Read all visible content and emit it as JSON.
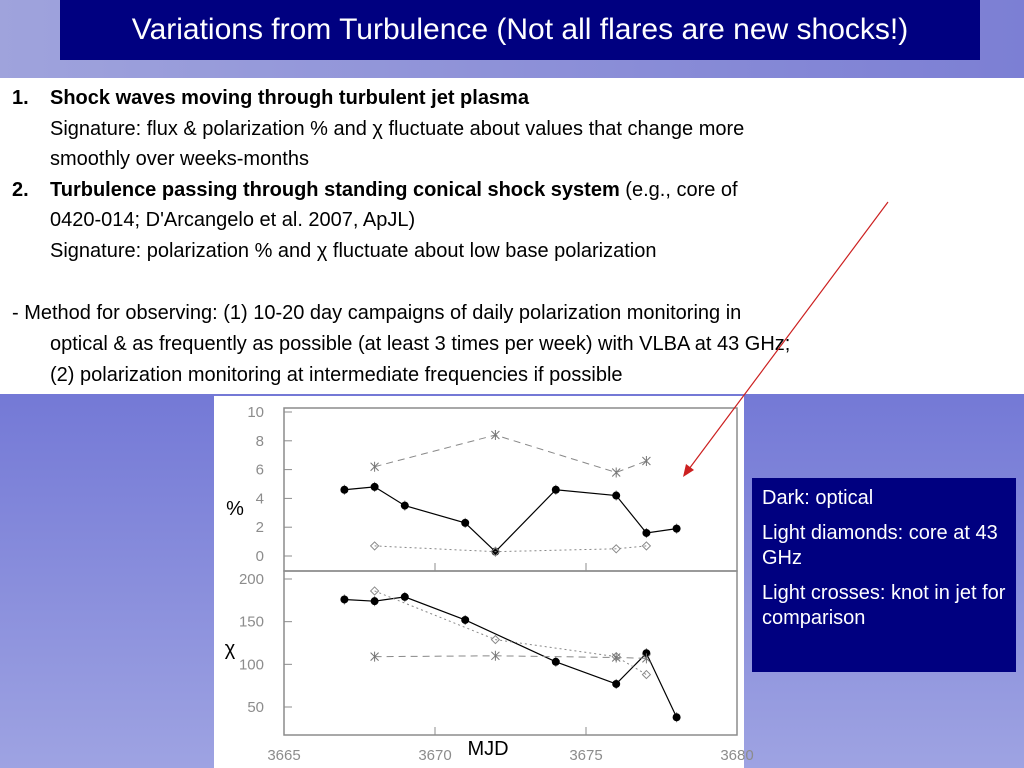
{
  "title": "Variations from Turbulence (Not all flares are new shocks!)",
  "items": [
    {
      "num": "1.",
      "heading": "Shock waves moving through turbulent jet plasma",
      "sig1": "Signature: flux & polarization % and χ fluctuate about values that change more",
      "sig2": "smoothly over weeks-months"
    },
    {
      "num": "2.",
      "heading": "Turbulence passing through standing conical shock system",
      "suffix": " (e.g., core of",
      "line2": "0420-014; D'Arcangelo et al. 2007, ApJL)",
      "sig1": "Signature: polarization % and χ fluctuate about low base polarization"
    }
  ],
  "method": {
    "l1": "- Method for observing: (1) 10-20 day campaigns of daily polarization monitoring in",
    "l2": "optical & as frequently as possible (at least 3 times per week) with VLBA  at 43 GHz;",
    "l3": "(2) polarization monitoring at intermediate frequencies if possible"
  },
  "legend": {
    "dark": "Dark: optical",
    "diamonds": "Light diamonds: core at 43 GHz",
    "crosses": "Light crosses: knot in jet for comparison"
  },
  "colors": {
    "title_bg": "#000080",
    "arrow": "#cc2020",
    "axis": "#8c8c8c"
  },
  "chart_data": [
    {
      "type": "scatter",
      "ylabel": "%",
      "xlim": [
        3665,
        3680
      ],
      "ylim": [
        0,
        10
      ],
      "y_ticks": [
        0,
        2,
        4,
        6,
        8,
        10
      ],
      "series": [
        {
          "name": "optical",
          "marker": "filled-circle",
          "line": "solid",
          "x": [
            3667,
            3668,
            3669,
            3671,
            3672,
            3674,
            3676,
            3677,
            3678
          ],
          "y": [
            4.6,
            4.8,
            3.5,
            2.3,
            0.3,
            4.6,
            4.2,
            1.6,
            1.9
          ]
        },
        {
          "name": "core 43 GHz",
          "marker": "diamond",
          "line": "dotted",
          "x": [
            3668,
            3672,
            3676,
            3677
          ],
          "y": [
            0.7,
            0.3,
            0.5,
            0.7
          ]
        },
        {
          "name": "knot",
          "marker": "cross",
          "line": "dashed",
          "x": [
            3668,
            3672,
            3676,
            3677
          ],
          "y": [
            6.2,
            8.4,
            5.8,
            6.6
          ]
        }
      ]
    },
    {
      "type": "scatter",
      "ylabel": "χ",
      "xlabel": "MJD",
      "xlim": [
        3665,
        3680
      ],
      "ylim": [
        30,
        210
      ],
      "x_ticks": [
        3665,
        3670,
        3675,
        3680
      ],
      "y_ticks": [
        50,
        100,
        150,
        200
      ],
      "series": [
        {
          "name": "optical",
          "marker": "filled-circle",
          "line": "solid",
          "x": [
            3667,
            3668,
            3669,
            3671,
            3674,
            3676,
            3677,
            3678
          ],
          "y": [
            176,
            174,
            179,
            152,
            103,
            77,
            113,
            38
          ]
        },
        {
          "name": "core 43 GHz",
          "marker": "diamond",
          "line": "dotted",
          "x": [
            3668,
            3672,
            3676,
            3677
          ],
          "y": [
            186,
            129,
            109,
            88
          ]
        },
        {
          "name": "knot",
          "marker": "cross",
          "line": "dashed",
          "x": [
            3668,
            3672,
            3676,
            3677
          ],
          "y": [
            109,
            110,
            108,
            107
          ]
        }
      ]
    }
  ]
}
